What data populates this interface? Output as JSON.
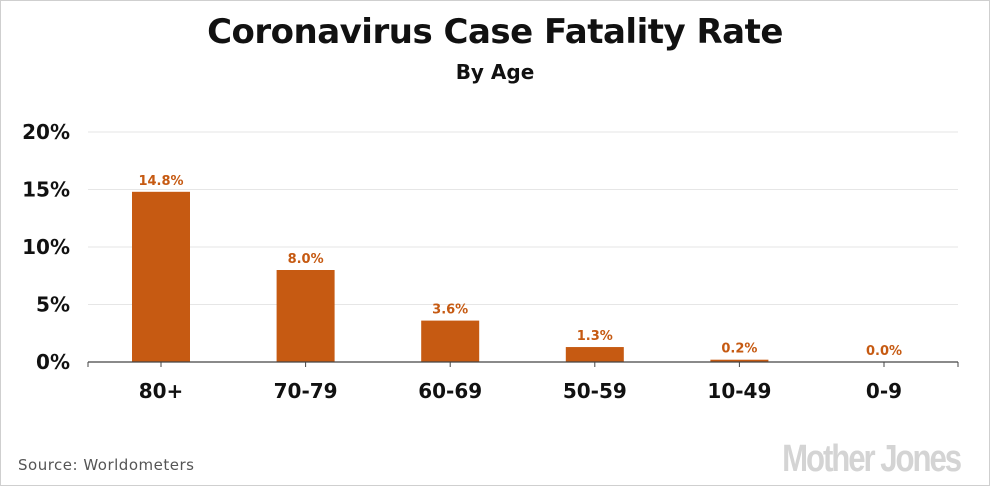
{
  "title": "Coronavirus Case Fatality Rate",
  "subtitle": "By Age",
  "source": "Source:  Worldometers",
  "logo_text": "Mother Jones",
  "chart_data": {
    "type": "bar",
    "categories": [
      "80+",
      "70-79",
      "60-69",
      "50-59",
      "10-49",
      "0-9"
    ],
    "values": [
      14.8,
      8.0,
      3.6,
      1.3,
      0.2,
      0.0
    ],
    "data_labels": [
      "14.8%",
      "8.0%",
      "3.6%",
      "1.3%",
      "0.2%",
      "0.0%"
    ],
    "ylim": [
      0,
      20
    ],
    "yticks": [
      0,
      5,
      10,
      15,
      20
    ],
    "ytick_labels": [
      "0%",
      "5%",
      "10%",
      "15%",
      "20%"
    ],
    "grid": true,
    "bar_color": "#c65a12",
    "label_color": "#c65a12"
  }
}
